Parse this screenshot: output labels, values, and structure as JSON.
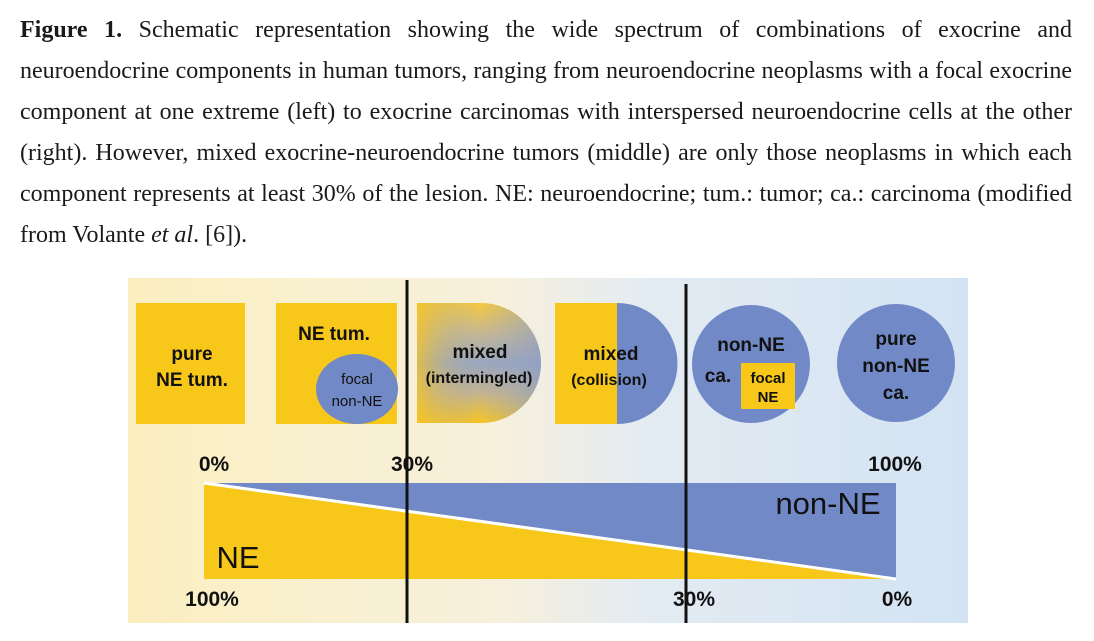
{
  "caption": {
    "label": "Figure 1.",
    "text_before_italic": " Schematic representation showing the wide spectrum of combinations of exocrine and neuroendocrine components in human tumors, ranging from neuroendocrine neoplasms with a focal exocrine component at one extreme (left) to exocrine carcinomas with interspersed neuroendocrine cells at the other (right). However, mixed exocrine-neuroendocrine tumors (middle) are only those neoplasms in which each component represents at least 30% of the lesion. NE: neuroendocrine; tum.: tumor; ca.: carcinoma (modified from Volante ",
    "italic": "et al",
    "text_after_italic": ". [6])."
  },
  "figure": {
    "colors": {
      "ne_yellow": "#f7c81a",
      "non_ne_blue": "#7189c6",
      "bg_left": "#fbefc0",
      "bg_right": "#d5e4f3",
      "divider": "#111111"
    },
    "categories": {
      "pure_ne": {
        "line1": "pure",
        "line2": "NE tum."
      },
      "ne_focal": {
        "title": "NE tum.",
        "inner_line1": "focal",
        "inner_line2": "non-NE"
      },
      "mixed_intermingled": {
        "line1": "mixed",
        "line2": "(intermingled)"
      },
      "mixed_collision": {
        "line1": "mixed",
        "line2": "(collision)"
      },
      "non_ne_focal": {
        "line1": "non-NE",
        "line2": "ca.",
        "inner_line1": "focal",
        "inner_line2": "NE"
      },
      "pure_non_ne": {
        "line1": "pure",
        "line2": "non-NE",
        "line3": "ca."
      }
    },
    "scale_top": {
      "left": "0%",
      "middle": "30%",
      "right": "100%"
    },
    "scale_bottom": {
      "left": "100%",
      "middle": "30%",
      "right": "0%"
    },
    "bar_labels": {
      "ne": "NE",
      "non_ne": "non-NE"
    }
  }
}
